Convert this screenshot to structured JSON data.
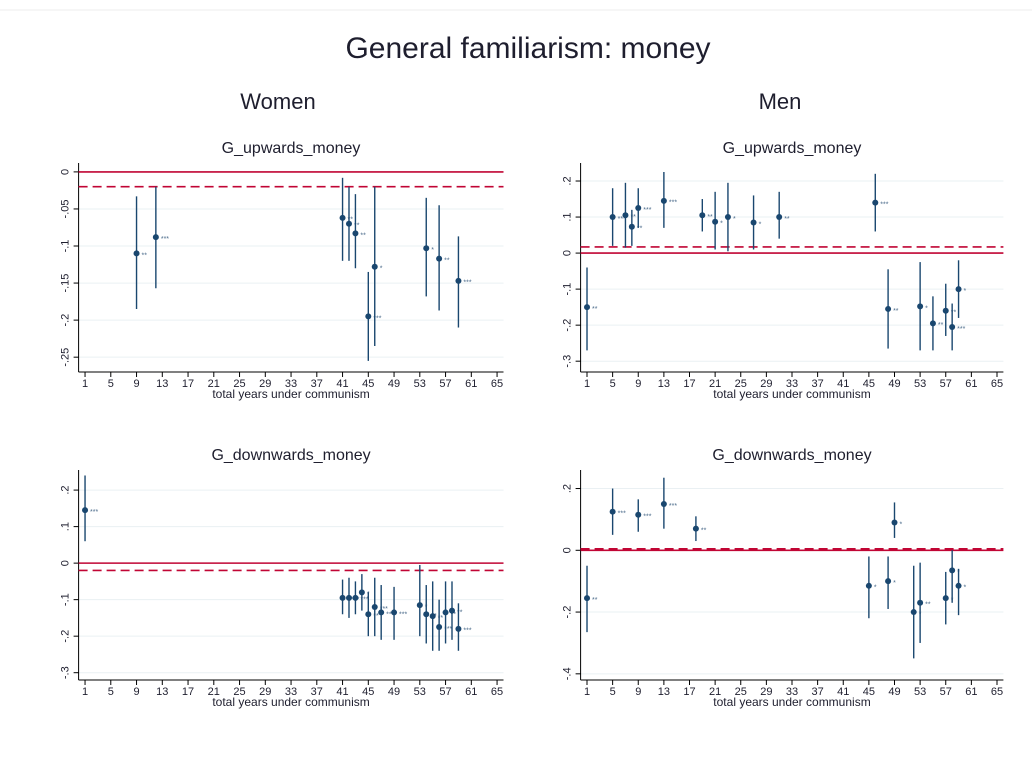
{
  "header": {
    "title": "General familiarism: money",
    "columns": [
      "Women",
      "Men"
    ]
  },
  "chart_data": [
    {
      "type": "errorbar",
      "title": "G_upwards_money",
      "xlabel": "total years under communism",
      "color": "#1a476f",
      "line_color": "#c10534",
      "x": [
        9,
        12,
        41,
        42,
        43,
        45,
        46,
        54,
        56,
        59
      ],
      "values": [
        -0.11,
        -0.088,
        -0.062,
        -0.07,
        -0.083,
        -0.195,
        -0.128,
        -0.103,
        -0.117,
        -0.147
      ],
      "lower": [
        -0.185,
        -0.157,
        -0.12,
        -0.12,
        -0.13,
        -0.255,
        -0.235,
        -0.168,
        -0.187,
        -0.21
      ],
      "upper": [
        -0.033,
        -0.02,
        -0.008,
        -0.02,
        -0.03,
        -0.135,
        -0.02,
        -0.035,
        -0.045,
        -0.087
      ],
      "stars": [
        "**",
        "***",
        "**",
        "**",
        "**",
        "***",
        "*",
        "*",
        "**",
        "***"
      ],
      "reference_lines": [
        {
          "value": 0,
          "style": "solid"
        },
        {
          "value": -0.02,
          "style": "dashed"
        }
      ],
      "xlim": [
        0,
        66
      ],
      "ylim": [
        -0.27,
        0.012
      ],
      "xticks": [
        1,
        5,
        9,
        13,
        17,
        21,
        25,
        29,
        33,
        37,
        41,
        45,
        49,
        53,
        57,
        61,
        65
      ],
      "yticks": [
        0,
        {
          "value": -0.05,
          "label": "-.05"
        },
        {
          "value": -0.1,
          "label": "-.1"
        },
        {
          "value": -0.15,
          "label": "-.15"
        },
        {
          "value": -0.2,
          "label": "-.2"
        },
        {
          "value": -0.25,
          "label": "-.25"
        }
      ],
      "grid": true
    },
    {
      "type": "errorbar",
      "title": "G_upwards_money",
      "xlabel": "total years under communism",
      "color": "#1a476f",
      "line_color": "#c10534",
      "x": [
        1,
        5,
        7,
        8,
        9,
        13,
        19,
        21,
        23,
        27,
        31,
        46,
        48,
        53,
        55,
        57,
        58,
        59
      ],
      "values": [
        -0.15,
        0.1,
        0.105,
        0.073,
        0.125,
        0.145,
        0.105,
        0.087,
        0.1,
        0.085,
        0.1,
        0.14,
        -0.155,
        -0.148,
        -0.195,
        -0.16,
        -0.205,
        -0.1
      ],
      "lower": [
        -0.27,
        0.02,
        0.015,
        0.02,
        0.07,
        0.07,
        0.06,
        0.01,
        0.005,
        0.01,
        0.04,
        0.06,
        -0.265,
        -0.27,
        -0.27,
        -0.23,
        -0.27,
        -0.18
      ],
      "upper": [
        -0.04,
        0.18,
        0.195,
        0.12,
        0.18,
        0.225,
        0.15,
        0.17,
        0.195,
        0.16,
        0.17,
        0.22,
        -0.045,
        -0.025,
        -0.12,
        -0.085,
        -0.14,
        -0.02
      ],
      "stars": [
        "**",
        "***",
        "**",
        "**",
        "***",
        "***",
        "**",
        "*",
        "*",
        "*",
        "**",
        "***",
        "**",
        "*",
        "**",
        "**",
        "***",
        "*"
      ],
      "reference_lines": [
        {
          "value": 0,
          "style": "solid"
        },
        {
          "value": 0.017,
          "style": "dashed"
        }
      ],
      "xlim": [
        0,
        66
      ],
      "ylim": [
        -0.33,
        0.25
      ],
      "xticks": [
        1,
        5,
        9,
        13,
        17,
        21,
        25,
        29,
        33,
        37,
        41,
        45,
        49,
        53,
        57,
        61,
        65
      ],
      "yticks": [
        {
          "value": 0.2,
          "label": ".2"
        },
        {
          "value": 0.1,
          "label": ".1"
        },
        0,
        {
          "value": -0.1,
          "label": "-.1"
        },
        {
          "value": -0.2,
          "label": "-.2"
        },
        {
          "value": -0.3,
          "label": "-.3"
        }
      ],
      "grid": true
    },
    {
      "type": "errorbar",
      "title": "G_downwards_money",
      "xlabel": "total years under communism",
      "color": "#1a476f",
      "line_color": "#c10534",
      "x": [
        1,
        41,
        42,
        43,
        44,
        45,
        46,
        47,
        49,
        53,
        54,
        55,
        56,
        57,
        58,
        59
      ],
      "values": [
        0.145,
        -0.095,
        -0.095,
        -0.095,
        -0.08,
        -0.14,
        -0.12,
        -0.135,
        -0.135,
        -0.115,
        -0.14,
        -0.145,
        -0.175,
        -0.135,
        -0.13,
        -0.18
      ],
      "lower": [
        0.06,
        -0.14,
        -0.15,
        -0.14,
        -0.13,
        -0.2,
        -0.2,
        -0.21,
        -0.21,
        -0.2,
        -0.22,
        -0.24,
        -0.24,
        -0.22,
        -0.21,
        -0.24
      ],
      "upper": [
        0.24,
        -0.045,
        -0.04,
        -0.05,
        -0.03,
        -0.08,
        -0.04,
        -0.06,
        -0.065,
        -0.005,
        -0.06,
        -0.05,
        -0.1,
        -0.05,
        -0.05,
        -0.11
      ],
      "stars": [
        "***",
        "**",
        "**",
        "***",
        "*",
        "**",
        "***",
        "***",
        "***",
        "*",
        "**",
        "**",
        "***",
        "**",
        "**",
        "***"
      ],
      "reference_lines": [
        {
          "value": 0,
          "style": "solid"
        },
        {
          "value": -0.02,
          "style": "dashed"
        }
      ],
      "xlim": [
        0,
        66
      ],
      "ylim": [
        -0.32,
        0.255
      ],
      "xticks": [
        1,
        5,
        9,
        13,
        17,
        21,
        25,
        29,
        33,
        37,
        41,
        45,
        49,
        53,
        57,
        61,
        65
      ],
      "yticks": [
        {
          "value": 0.2,
          "label": ".2"
        },
        {
          "value": 0.1,
          "label": ".1"
        },
        0,
        {
          "value": -0.1,
          "label": "-.1"
        },
        {
          "value": -0.2,
          "label": "-.2"
        },
        {
          "value": -0.3,
          "label": "-.3"
        }
      ],
      "grid": true
    },
    {
      "type": "errorbar",
      "title": "G_downwards_money",
      "xlabel": "total years under communism",
      "color": "#1a476f",
      "line_color": "#c10534",
      "x": [
        1,
        5,
        9,
        13,
        18,
        45,
        48,
        49,
        52,
        53,
        57,
        58,
        59
      ],
      "values": [
        -0.155,
        0.125,
        0.115,
        0.15,
        0.07,
        -0.115,
        -0.1,
        0.09,
        -0.2,
        -0.17,
        -0.155,
        -0.065,
        -0.115
      ],
      "lower": [
        -0.265,
        0.05,
        0.06,
        0.07,
        0.03,
        -0.22,
        -0.19,
        0.04,
        -0.35,
        -0.3,
        -0.24,
        -0.17,
        -0.21
      ],
      "upper": [
        -0.05,
        0.2,
        0.165,
        0.235,
        0.11,
        -0.02,
        -0.02,
        0.155,
        -0.05,
        -0.04,
        -0.07,
        0.0,
        -0.06
      ],
      "stars": [
        "**",
        "***",
        "***",
        "***",
        "**",
        "*",
        "*",
        "*",
        "*",
        "**",
        "*",
        "*",
        "*"
      ],
      "reference_lines": [
        {
          "value": 0,
          "style": "solid"
        },
        {
          "value": 0.005,
          "style": "dashed"
        }
      ],
      "xlim": [
        0,
        66
      ],
      "ylim": [
        -0.42,
        0.26
      ],
      "xticks": [
        1,
        5,
        9,
        13,
        17,
        21,
        25,
        29,
        33,
        37,
        41,
        45,
        49,
        53,
        57,
        61,
        65
      ],
      "yticks": [
        {
          "value": 0.2,
          "label": ".2"
        },
        0,
        {
          "value": -0.2,
          "label": "-.2"
        },
        {
          "value": -0.4,
          "label": "-.4"
        }
      ],
      "grid": true
    }
  ]
}
